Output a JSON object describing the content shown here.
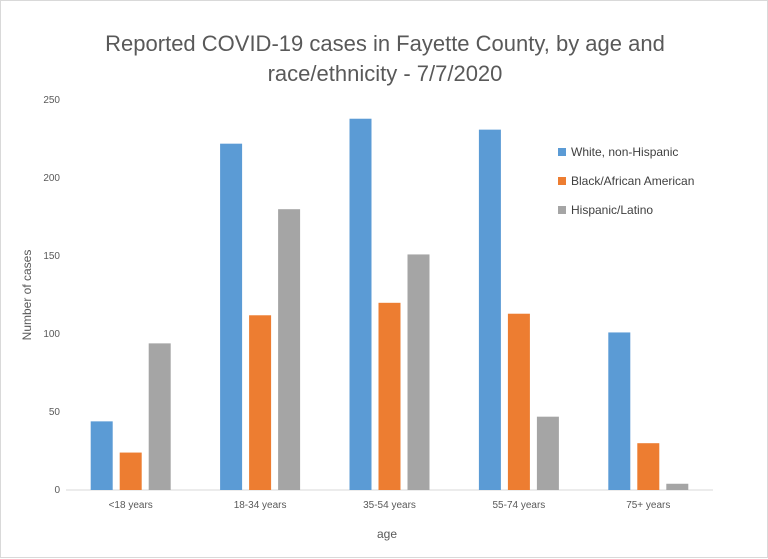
{
  "chart_data": {
    "type": "bar",
    "title_lines": [
      "Reported COVID-19 cases in Fayette County, by age and",
      "race/ethnicity - 7/7/2020"
    ],
    "xlabel": "age",
    "ylabel": "Number of cases",
    "categories": [
      "<18 years",
      "18-34 years",
      "35-54 years",
      "55-74 years",
      "75+ years"
    ],
    "ylim": [
      0,
      250
    ],
    "yticks": [
      0,
      50,
      100,
      150,
      200,
      250
    ],
    "grid": false,
    "legend_position": "right",
    "series": [
      {
        "name": "White, non-Hispanic",
        "color": "#5b9bd5",
        "values": [
          44,
          222,
          238,
          231,
          101
        ]
      },
      {
        "name": "Black/African American",
        "color": "#ed7d31",
        "values": [
          24,
          112,
          120,
          113,
          30
        ]
      },
      {
        "name": "Hispanic/Latino",
        "color": "#a5a5a5",
        "values": [
          94,
          180,
          151,
          47,
          4
        ]
      }
    ]
  }
}
